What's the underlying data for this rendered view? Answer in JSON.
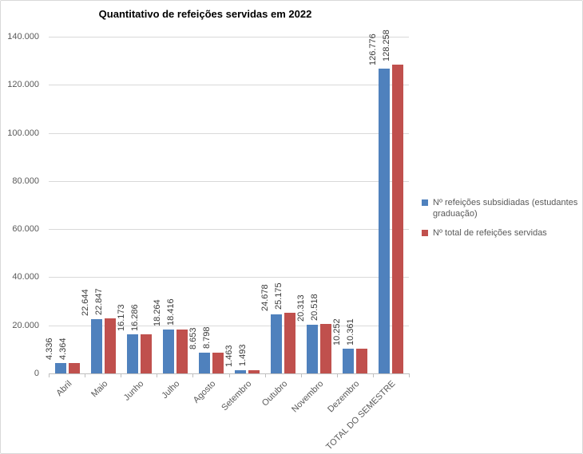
{
  "chart_data": {
    "type": "bar",
    "title": "Quantitativo de refeições servidas em 2022",
    "categories": [
      "Abril",
      "Maio",
      "Junho",
      "Julho",
      "Agosto",
      "Setembro",
      "Outubro",
      "Novembro",
      "Dezembro",
      "TOTAL DO SEMESTRE"
    ],
    "series": [
      {
        "name": "Nº refeições subsidiadas (estudantes graduação)",
        "color": "#4F81BD",
        "values": [
          4336,
          22644,
          16173,
          18264,
          8653,
          1463,
          24678,
          20313,
          10252,
          126776
        ],
        "labels": [
          "4.336",
          "22.644",
          "16.173",
          "18.264",
          "8.653",
          "1.463",
          "24.678",
          "20.313",
          "10.252",
          "126.776"
        ]
      },
      {
        "name": "Nº total de refeições servidas",
        "color": "#C0504D",
        "values": [
          4364,
          22847,
          16286,
          18416,
          8798,
          1493,
          25175,
          20518,
          10361,
          128258
        ],
        "labels": [
          "4.364",
          "22.847",
          "16.286",
          "18.416",
          "8.798",
          "1.493",
          "25.175",
          "20.518",
          "10.361",
          "128.258"
        ]
      }
    ],
    "y_axis": {
      "min": 0,
      "max": 140000,
      "step": 20000,
      "tick_labels": [
        "0",
        "20.000",
        "40.000",
        "60.000",
        "80.000",
        "100.000",
        "120.000",
        "140.000"
      ]
    },
    "legend_position": "right",
    "grid": true
  },
  "colors": {
    "gridline": "#d9d9d9",
    "axis": "#bfbfbf",
    "tick_text": "#595959",
    "data_label": "#3a3a3a",
    "frame": "#d9d9d9"
  }
}
